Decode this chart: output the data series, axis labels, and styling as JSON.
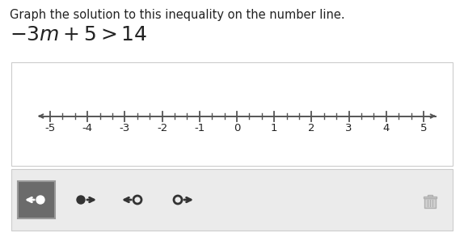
{
  "instruction_text": "Graph the solution to this inequality on the number line.",
  "number_line_min": -5,
  "number_line_max": 5,
  "tick_labels": [
    -5,
    -4,
    -3,
    -2,
    -1,
    0,
    1,
    2,
    3,
    4,
    5
  ],
  "background_color": "#ffffff",
  "number_line_box_bg": "#ffffff",
  "number_line_box_border": "#cccccc",
  "toolbar_bg": "#ebebeb",
  "toolbar_selected_bg": "#6b6b6b",
  "toolbar_border": "#cccccc",
  "icon_dark": "#333333",
  "icon_white": "#ffffff",
  "text_color": "#222222",
  "instruction_fontsize": 10.5,
  "inequality_fontsize": 18,
  "tick_fontsize": 9.5,
  "toolbar_icons": [
    {
      "type": "arrow_left_filled_dot",
      "selected": true
    },
    {
      "type": "arrow_right_filled_dot",
      "selected": false
    },
    {
      "type": "arrow_left_open_dot",
      "selected": false
    },
    {
      "type": "arrow_right_open_dot",
      "selected": false
    }
  ]
}
